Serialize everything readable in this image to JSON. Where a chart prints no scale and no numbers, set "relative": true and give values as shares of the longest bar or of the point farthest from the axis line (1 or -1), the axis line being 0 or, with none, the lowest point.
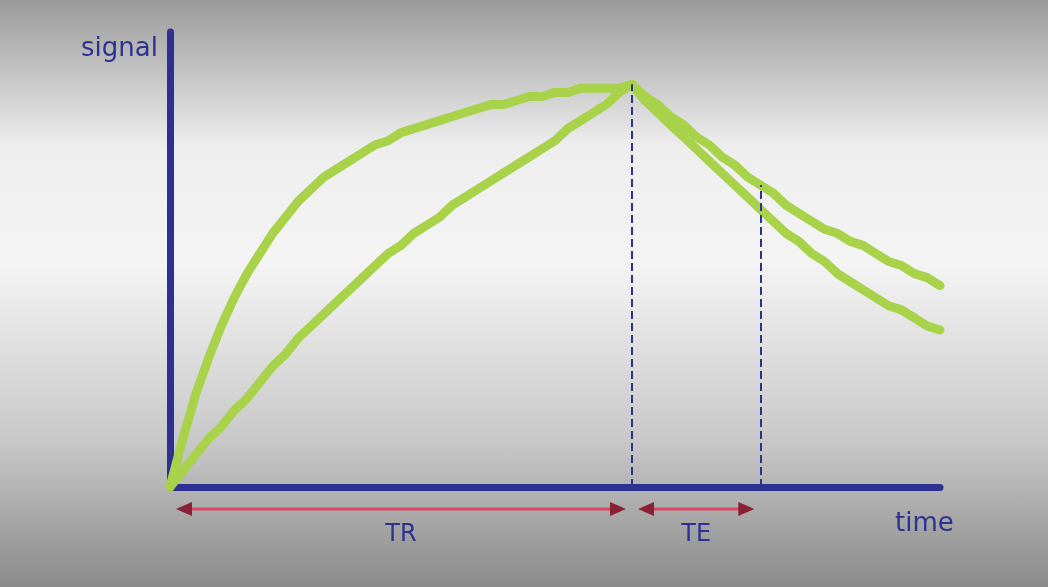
{
  "chart_data": {
    "type": "line",
    "relative": true,
    "xlabel": "time",
    "ylabel": "signal",
    "grid": false,
    "marker": "none",
    "line_style": "solid",
    "categories": [
      null,
      null,
      null,
      null,
      null,
      null,
      null,
      null,
      null,
      null,
      null,
      null,
      null,
      null,
      null,
      null,
      null,
      null,
      null,
      null,
      null,
      null,
      null,
      null,
      null,
      null,
      null,
      null,
      null,
      null,
      null,
      null,
      null,
      null,
      null,
      null,
      null,
      null,
      null,
      null,
      null,
      null,
      null,
      null,
      null,
      null,
      null,
      null,
      null,
      null,
      null,
      null,
      null,
      null,
      null,
      null,
      null,
      null,
      null,
      null,
      null
    ],
    "series": [
      {
        "color": "#a8d24a",
        "values": [
          0,
          0.12,
          0.23,
          0.32,
          0.4,
          0.47,
          0.53,
          0.58,
          0.63,
          0.67,
          0.71,
          0.74,
          0.77,
          0.79,
          0.81,
          0.83,
          0.85,
          0.86,
          0.88,
          0.89,
          0.9,
          0.91,
          0.92,
          0.93,
          0.94,
          0.95,
          0.95,
          0.96,
          0.97,
          0.97,
          0.98,
          0.98,
          0.99,
          0.99,
          0.99,
          0.99,
          1,
          0.97,
          0.95,
          0.92,
          0.9,
          0.87,
          0.85,
          0.82,
          0.8,
          0.77,
          0.75,
          0.73,
          0.7,
          0.68,
          0.66,
          0.64,
          0.63,
          0.61,
          0.6,
          0.58,
          0.56,
          0.55,
          0.53,
          0.52,
          0.5
        ]
      },
      {
        "color": "#a8d24a",
        "values": [
          0,
          0.04,
          0.08,
          0.12,
          0.15,
          0.19,
          0.22,
          0.26,
          0.3,
          0.33,
          0.37,
          0.4,
          0.43,
          0.46,
          0.49,
          0.52,
          0.55,
          0.58,
          0.6,
          0.63,
          0.65,
          0.67,
          0.7,
          0.72,
          0.74,
          0.76,
          0.78,
          0.8,
          0.82,
          0.84,
          0.86,
          0.89,
          0.91,
          0.93,
          0.95,
          0.98,
          1,
          0.96,
          0.93,
          0.9,
          0.87,
          0.84,
          0.81,
          0.78,
          0.75,
          0.72,
          0.69,
          0.66,
          0.63,
          0.61,
          0.58,
          0.56,
          0.53,
          0.51,
          0.49,
          0.47,
          0.45,
          0.44,
          0.42,
          0.4,
          0.39
        ]
      }
    ],
    "annotations": [
      "TR",
      "TE"
    ]
  }
}
